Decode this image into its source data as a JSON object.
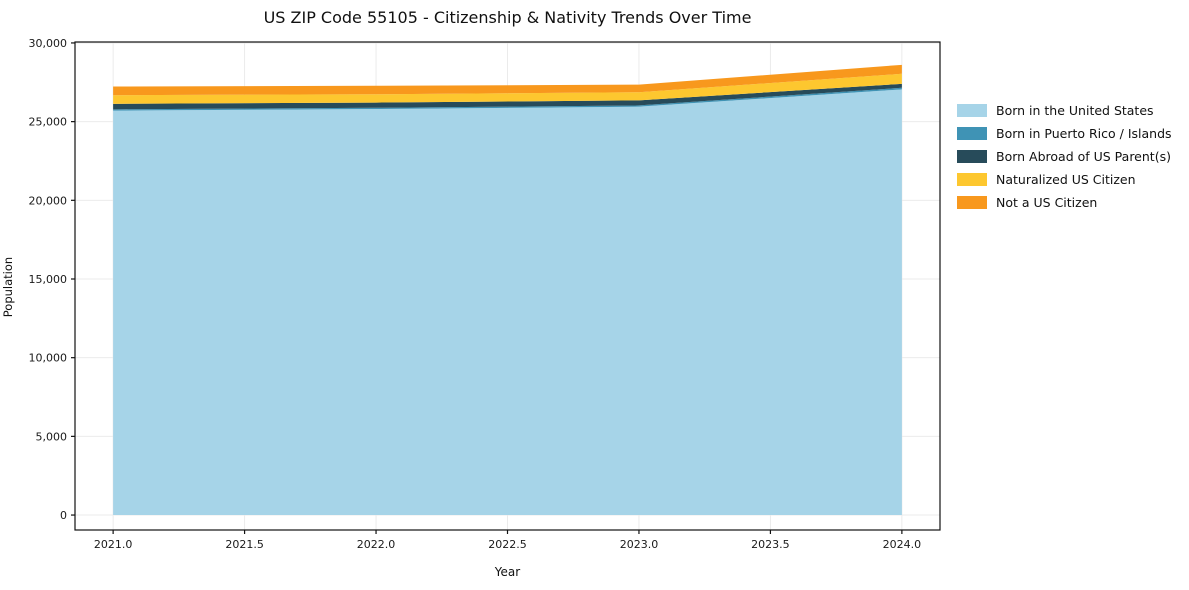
{
  "chart_data": {
    "type": "area",
    "stacked": true,
    "title": "US ZIP Code 55105 - Citizenship & Nativity Trends Over Time",
    "xlabel": "Year",
    "ylabel": "Population",
    "x": [
      2021,
      2022,
      2023,
      2024
    ],
    "series": [
      {
        "name": "Born in the United States",
        "color": "#a6d4e8",
        "values": [
          25700,
          25800,
          25950,
          27050
        ]
      },
      {
        "name": "Born in Puerto Rico / Islands",
        "color": "#3f93b5",
        "values": [
          80,
          80,
          80,
          100
        ]
      },
      {
        "name": "Born Abroad of US Parent(s)",
        "color": "#274b5a",
        "values": [
          350,
          330,
          320,
          250
        ]
      },
      {
        "name": "Naturalized US Citizen",
        "color": "#fdc72f",
        "values": [
          550,
          530,
          520,
          640
        ]
      },
      {
        "name": "Not a US Citizen",
        "color": "#f8981d",
        "values": [
          550,
          540,
          480,
          570
        ]
      }
    ],
    "xlim": [
      2020.855,
      2024.145
    ],
    "ylim": [
      -950,
      30060
    ],
    "xticks": [
      2021.0,
      2021.5,
      2022.0,
      2022.5,
      2023.0,
      2023.5,
      2024.0
    ],
    "xtick_labels": [
      "2021.0",
      "2021.5",
      "2022.0",
      "2022.5",
      "2023.0",
      "2023.5",
      "2024.0"
    ],
    "yticks": [
      0,
      5000,
      10000,
      15000,
      20000,
      25000,
      30000
    ],
    "ytick_labels": [
      "0",
      "5,000",
      "10,000",
      "15,000",
      "20,000",
      "25,000",
      "30,000"
    ],
    "grid": true,
    "grid_color": "#ebebeb",
    "axis_color": "#111111",
    "legend_position": "right of plot, frameless"
  }
}
